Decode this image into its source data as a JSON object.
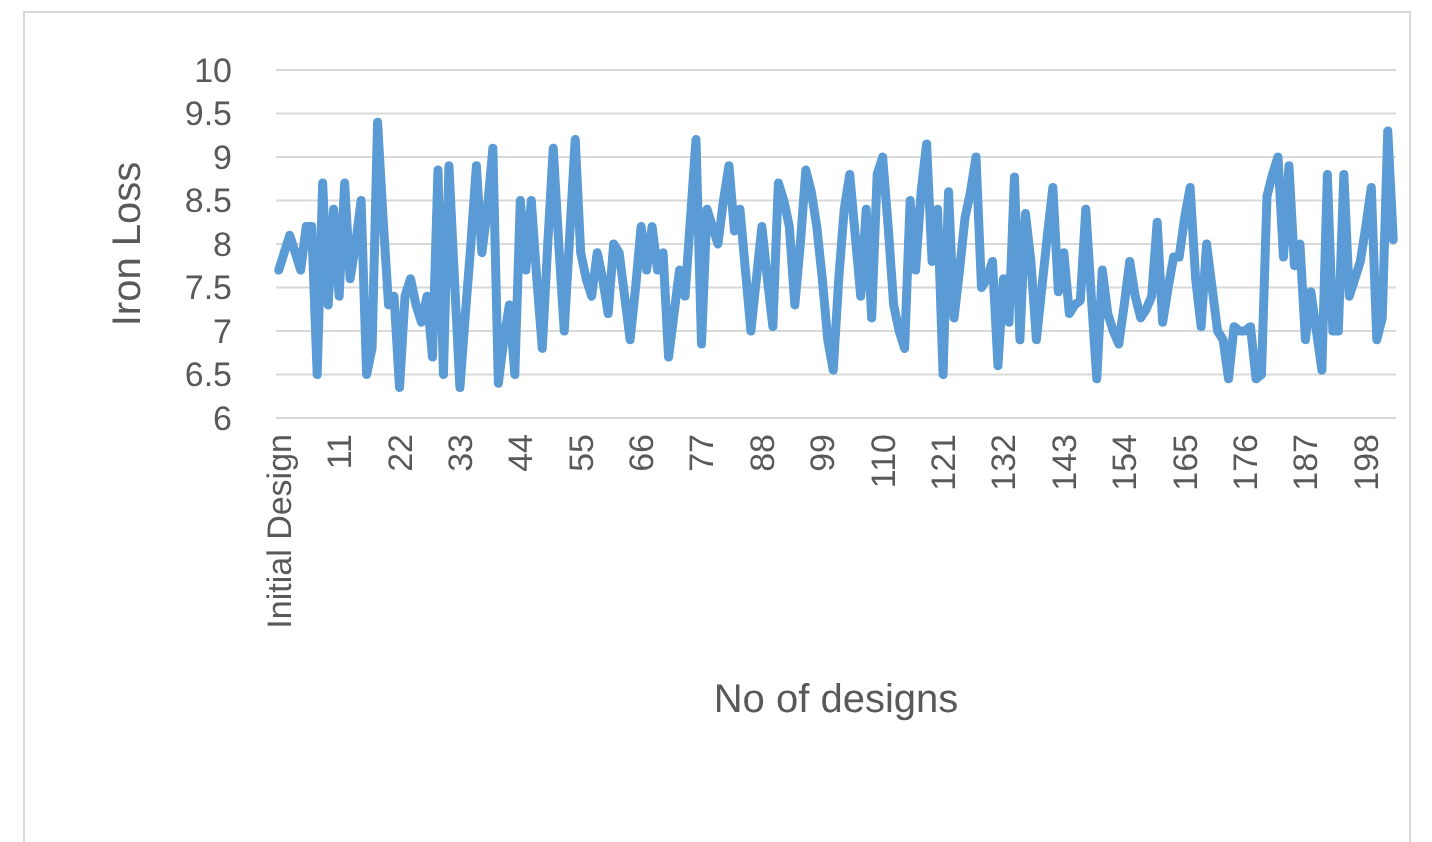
{
  "chart_data": {
    "type": "line",
    "ylabel": "Iron Loss",
    "xlabel": "No of designs",
    "categories": [
      "Initial Design",
      null,
      null,
      null,
      null,
      null,
      null,
      null,
      null,
      null,
      null,
      "11",
      null,
      null,
      null,
      null,
      null,
      null,
      null,
      null,
      null,
      null,
      "22",
      null,
      null,
      null,
      null,
      null,
      null,
      null,
      null,
      null,
      null,
      "33",
      null,
      null,
      null,
      null,
      null,
      null,
      null,
      null,
      null,
      null,
      "44",
      null,
      null,
      null,
      null,
      null,
      null,
      null,
      null,
      null,
      null,
      "55",
      null,
      null,
      null,
      null,
      null,
      null,
      null,
      null,
      null,
      null,
      "66",
      null,
      null,
      null,
      null,
      null,
      null,
      null,
      null,
      null,
      null,
      "77",
      null,
      null,
      null,
      null,
      null,
      null,
      null,
      null,
      null,
      null,
      "88",
      null,
      null,
      null,
      null,
      null,
      null,
      null,
      null,
      null,
      null,
      "99",
      null,
      null,
      null,
      null,
      null,
      null,
      null,
      null,
      null,
      null,
      "110",
      null,
      null,
      null,
      null,
      null,
      null,
      null,
      null,
      null,
      null,
      "121",
      null,
      null,
      null,
      null,
      null,
      null,
      null,
      null,
      null,
      null,
      "132",
      null,
      null,
      null,
      null,
      null,
      null,
      null,
      null,
      null,
      null,
      "143",
      null,
      null,
      null,
      null,
      null,
      null,
      null,
      null,
      null,
      null,
      "154",
      null,
      null,
      null,
      null,
      null,
      null,
      null,
      null,
      null,
      null,
      "165",
      null,
      null,
      null,
      null,
      null,
      null,
      null,
      null,
      null,
      null,
      "176",
      null,
      null,
      null,
      null,
      null,
      null,
      null,
      null,
      null,
      null,
      "187",
      null,
      null,
      null,
      null,
      null,
      null,
      null,
      null,
      null,
      null,
      "198",
      null,
      null,
      null,
      null,
      null
    ],
    "series": [
      {
        "color": "#5b9bd5",
        "values": [
          7.7,
          7.9,
          8.1,
          7.9,
          7.7,
          8.2,
          8.2,
          6.5,
          8.7,
          7.3,
          8.4,
          7.4,
          8.7,
          7.6,
          8.0,
          8.5,
          6.5,
          6.8,
          9.4,
          8.3,
          7.3,
          7.4,
          6.35,
          7.4,
          7.6,
          7.3,
          7.1,
          7.4,
          6.7,
          8.85,
          6.5,
          8.9,
          7.6,
          6.35,
          7.2,
          8.0,
          8.9,
          7.9,
          8.4,
          9.1,
          6.4,
          6.9,
          7.3,
          6.5,
          8.5,
          7.7,
          8.5,
          7.6,
          6.8,
          8.0,
          9.1,
          8.0,
          7.0,
          8.1,
          9.2,
          7.9,
          7.6,
          7.4,
          7.9,
          7.6,
          7.2,
          8.0,
          7.9,
          7.4,
          6.9,
          7.5,
          8.2,
          7.7,
          8.2,
          7.7,
          7.9,
          6.7,
          7.2,
          7.7,
          7.4,
          8.3,
          9.2,
          6.85,
          8.4,
          8.2,
          8.0,
          8.5,
          8.9,
          8.15,
          8.4,
          7.7,
          7.0,
          7.6,
          8.2,
          7.6,
          7.05,
          8.7,
          8.5,
          8.2,
          7.3,
          8.0,
          8.85,
          8.6,
          8.2,
          7.6,
          6.9,
          6.55,
          7.6,
          8.4,
          8.8,
          8.1,
          7.4,
          8.4,
          7.15,
          8.8,
          9.0,
          8.2,
          7.3,
          7.0,
          6.8,
          8.5,
          7.7,
          8.6,
          9.15,
          7.8,
          8.4,
          6.5,
          8.6,
          7.15,
          7.7,
          8.3,
          8.6,
          9.0,
          7.5,
          7.6,
          7.8,
          6.6,
          7.6,
          7.1,
          8.77,
          6.9,
          8.35,
          7.8,
          6.9,
          7.5,
          8.1,
          8.65,
          7.45,
          7.9,
          7.2,
          7.3,
          7.35,
          8.4,
          7.4,
          6.45,
          7.7,
          7.2,
          7.0,
          6.85,
          7.3,
          7.8,
          7.4,
          7.15,
          7.25,
          7.4,
          8.25,
          7.1,
          7.5,
          7.85,
          7.85,
          8.3,
          8.65,
          7.6,
          7.05,
          8.0,
          7.5,
          7.0,
          6.9,
          6.45,
          7.05,
          7.0,
          7.0,
          7.05,
          6.45,
          6.5,
          8.55,
          8.8,
          9.0,
          7.85,
          8.9,
          7.75,
          8.0,
          6.9,
          7.45,
          7.0,
          6.55,
          8.8,
          7.0,
          7.0,
          8.8,
          7.4,
          7.6,
          7.8,
          8.2,
          8.65,
          6.9,
          7.15,
          9.3,
          8.05
        ]
      }
    ],
    "ylim": [
      6,
      10
    ],
    "yticks": [
      6,
      6.5,
      7,
      7.5,
      8,
      8.5,
      9,
      9.5,
      10
    ],
    "grid": "y",
    "line_style": "solid",
    "marker": "none"
  }
}
